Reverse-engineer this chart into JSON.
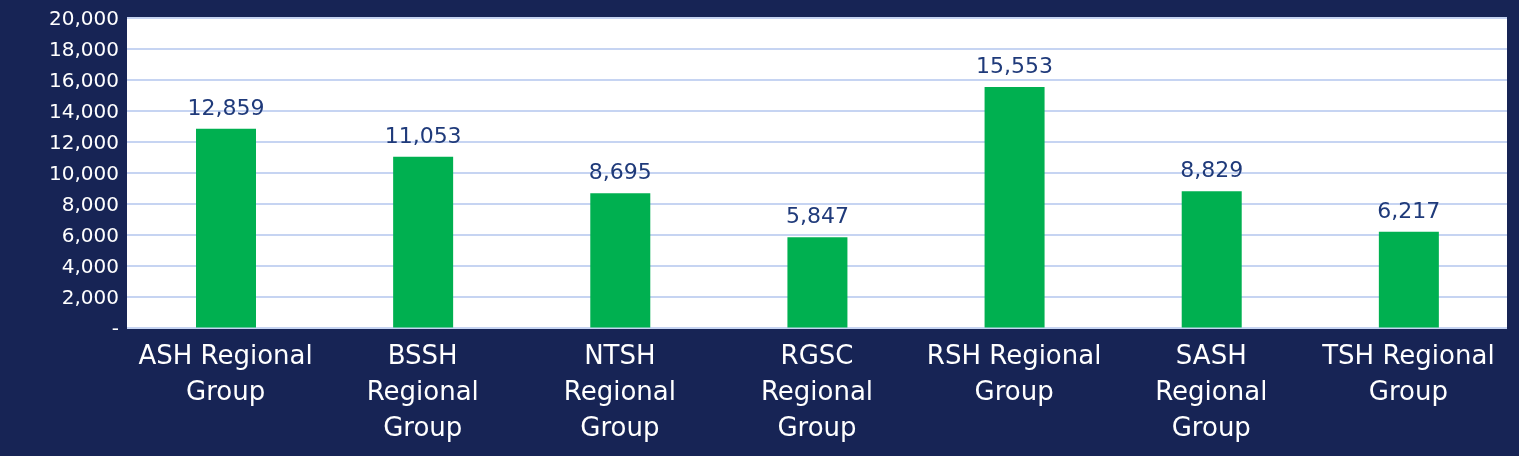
{
  "chart_data": {
    "type": "bar",
    "categories": [
      "ASH Regional Group",
      "BSSH Regional Group",
      "NTSH Regional Group",
      "RGSC Regional Group",
      "RSH Regional Group",
      "SASH Regional Group",
      "TSH Regional Group"
    ],
    "values": [
      12859,
      11053,
      8695,
      5847,
      15553,
      8829,
      6217
    ],
    "value_labels": [
      "12,859",
      "11,053",
      "8,695",
      "5,847",
      "15,553",
      "8,829",
      "6,217"
    ],
    "color": "#00b050",
    "grid": "y",
    "ylim": [
      0,
      20000
    ],
    "yticks": [
      {
        "value": 0,
        "label": "-"
      },
      {
        "value": 2000,
        "label": "2,000"
      },
      {
        "value": 4000,
        "label": "4,000"
      },
      {
        "value": 6000,
        "label": "6,000"
      },
      {
        "value": 8000,
        "label": "8,000"
      },
      {
        "value": 10000,
        "label": "10,000"
      },
      {
        "value": 12000,
        "label": "12,000"
      },
      {
        "value": 14000,
        "label": "14,000"
      },
      {
        "value": 16000,
        "label": "16,000"
      },
      {
        "value": 18000,
        "label": "18,000"
      },
      {
        "value": 20000,
        "label": "20,000"
      }
    ]
  }
}
